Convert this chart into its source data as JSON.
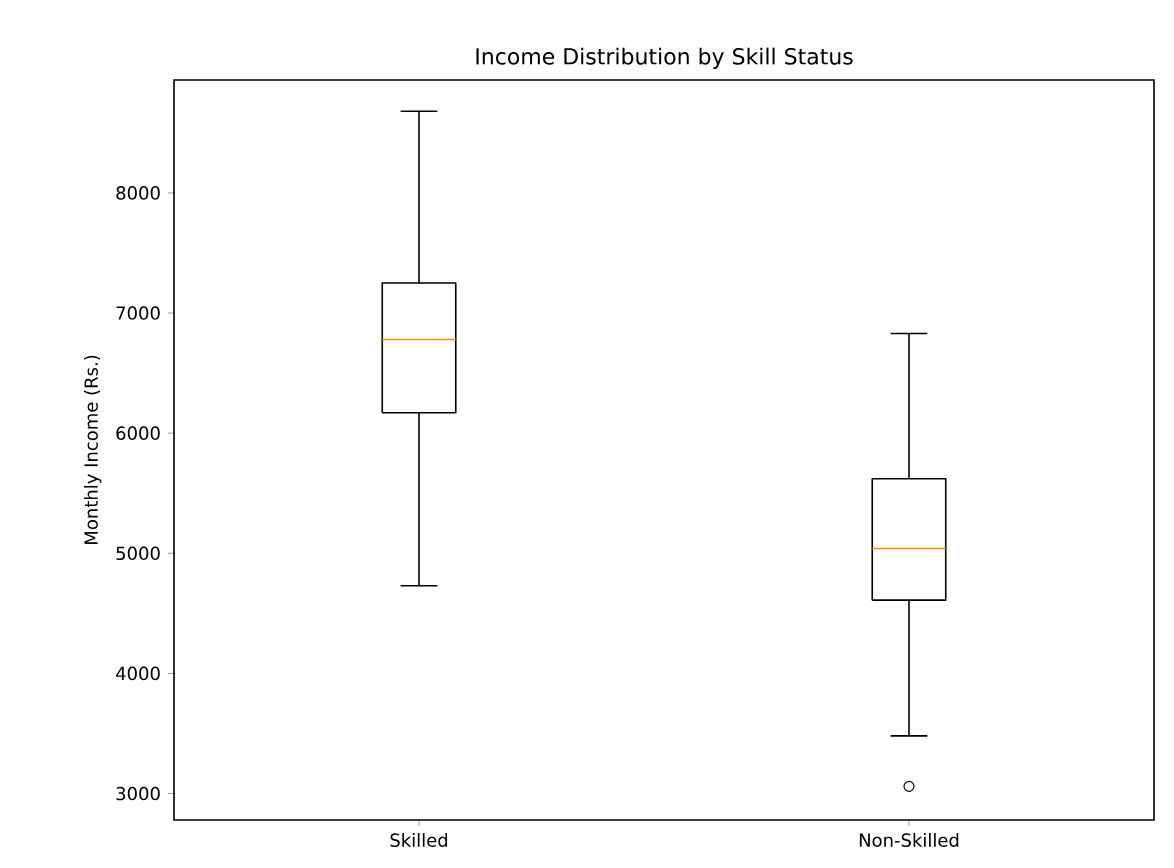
{
  "chart_data": {
    "type": "box",
    "title": "Income Distribution by Skill Status",
    "ylabel": "Monthly Income (Rs.)",
    "categories": [
      "Skilled",
      "Non-Skilled"
    ],
    "boxes": [
      {
        "low": 4730,
        "q1": 6170,
        "median": 6780,
        "q3": 7250,
        "high": 8680
      },
      {
        "low": 3480,
        "q1": 4610,
        "median": 5040,
        "q3": 5620,
        "high": 6830,
        "outliers": [
          3060
        ]
      }
    ],
    "ylim": [
      2780,
      8940
    ],
    "yticks": [
      3000,
      4000,
      5000,
      6000,
      7000,
      8000
    ],
    "grid": false,
    "marker": "circle"
  }
}
